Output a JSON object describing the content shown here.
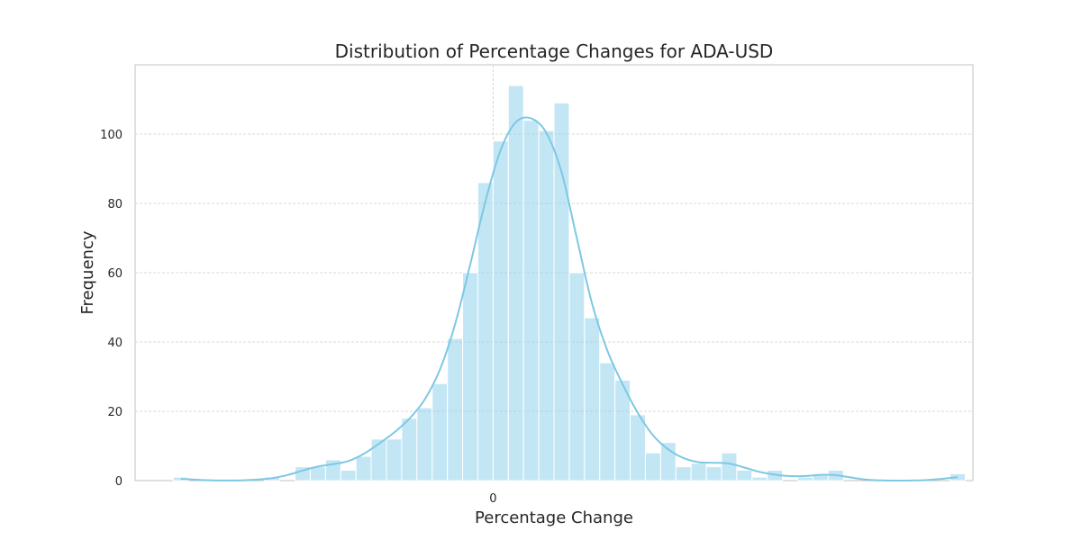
{
  "chart_data": {
    "type": "bar",
    "title": "Distribution of Percentage Changes for ADA-USD",
    "xlabel": "Percentage Change",
    "ylabel": "Frequency",
    "ylim": [
      0,
      120
    ],
    "y_ticks": [
      0,
      20,
      40,
      60,
      80,
      100
    ],
    "x_ticks": [
      0
    ],
    "x_tick_labels": [
      "0"
    ],
    "xlim": [
      -23.5,
      31.5
    ],
    "bin_start": -21,
    "bin_width": 1,
    "values": [
      1,
      0,
      0,
      0,
      0,
      0,
      1,
      0,
      4,
      4,
      6,
      3,
      7,
      12,
      12,
      18,
      21,
      28,
      41,
      60,
      86,
      98,
      114,
      104,
      101,
      109,
      60,
      47,
      34,
      29,
      19,
      8,
      11,
      4,
      5,
      4,
      8,
      3,
      1,
      3,
      0,
      1,
      2,
      3,
      0,
      0,
      0,
      0,
      0,
      0,
      0,
      2
    ],
    "grid": true,
    "bar_color": "#87CEEB",
    "kde_color": "#7EC8E3",
    "kde": true,
    "legend": "none"
  }
}
